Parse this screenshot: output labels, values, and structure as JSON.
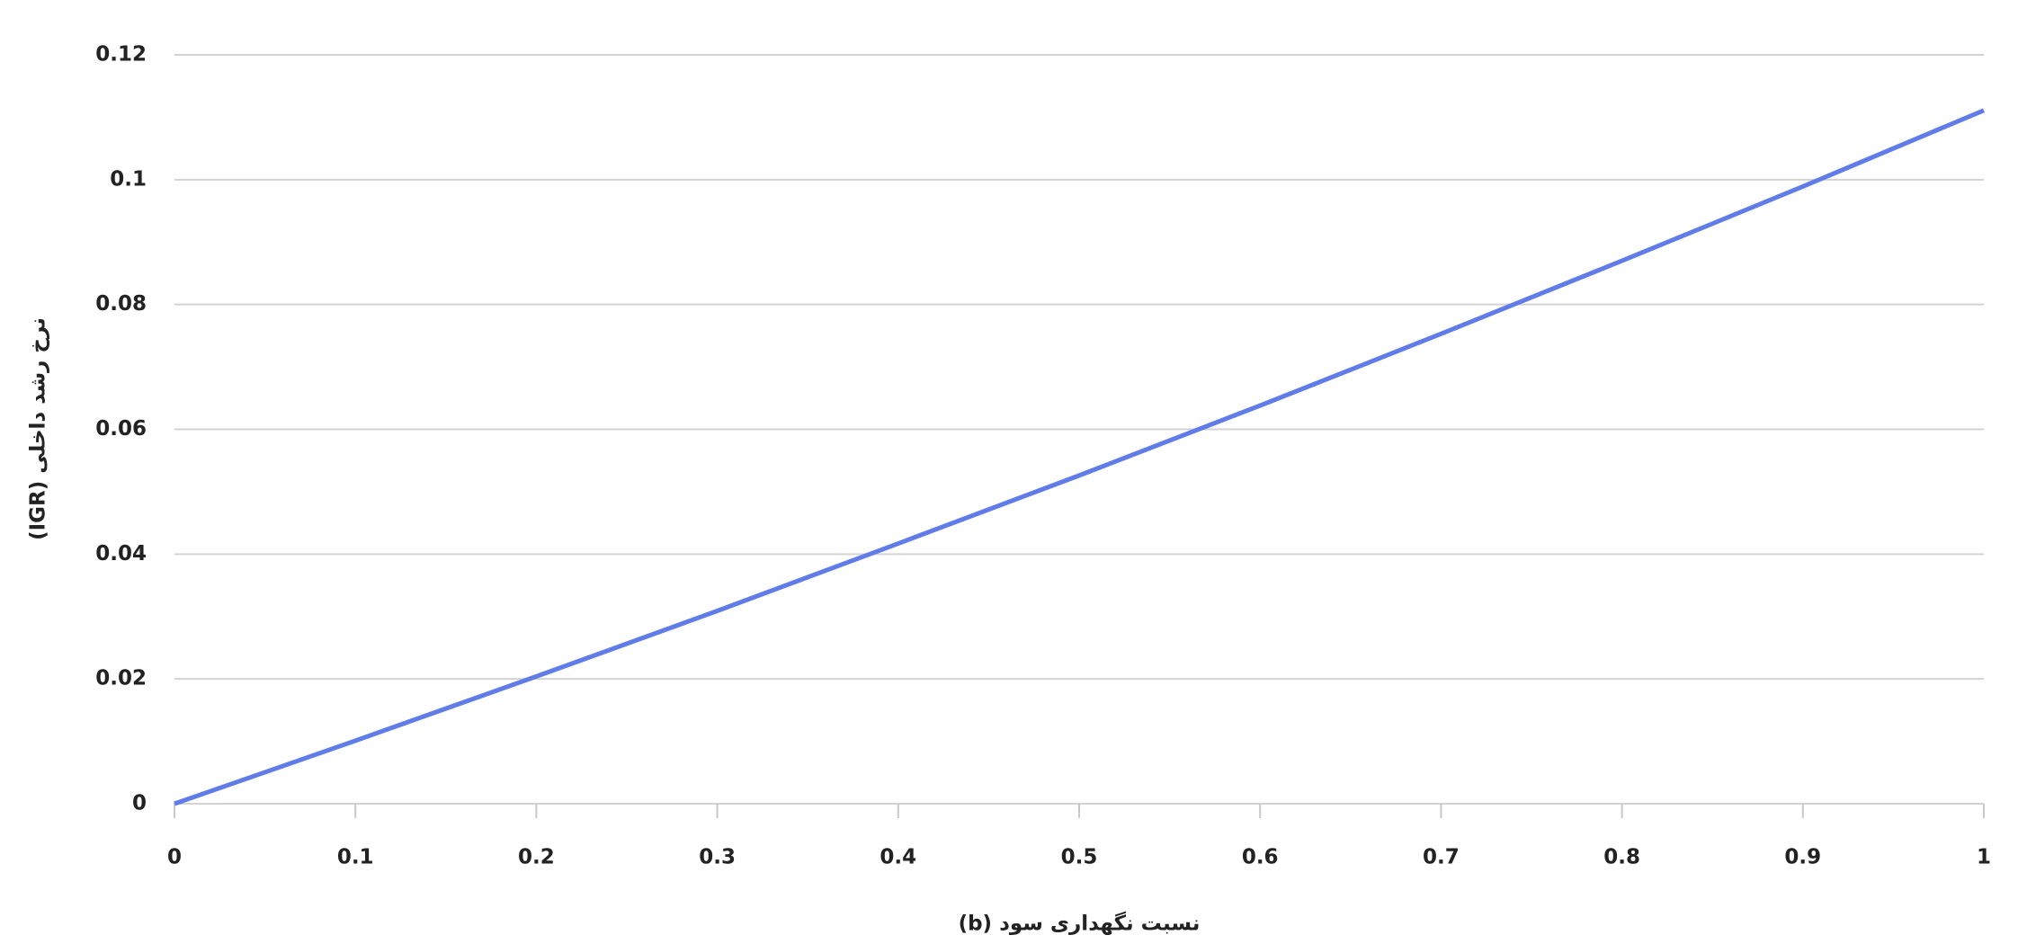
{
  "chart_data": {
    "type": "line",
    "x_label": "(b) نسبت نگهداری سود",
    "y_label": "(IGR) نرخ رشد داخلی",
    "x": [
      0,
      0.1,
      0.2,
      0.3,
      0.4,
      0.5,
      0.6,
      0.7,
      0.8,
      0.9,
      1
    ],
    "values": [
      0,
      0.0101,
      0.0204,
      0.0309,
      0.0417,
      0.0526,
      0.0638,
      0.0753,
      0.087,
      0.0989,
      0.1111
    ],
    "color": "#5f7ce8",
    "xlim": [
      0,
      1
    ],
    "xticks": [
      0,
      0.1,
      0.2,
      0.3,
      0.4,
      0.5,
      0.6,
      0.7,
      0.8,
      0.9,
      1
    ],
    "ylim": [
      0,
      0.12
    ],
    "yticks": [
      0,
      0.02,
      0.04,
      0.06,
      0.08,
      0.1,
      0.12
    ],
    "grid": true
  }
}
